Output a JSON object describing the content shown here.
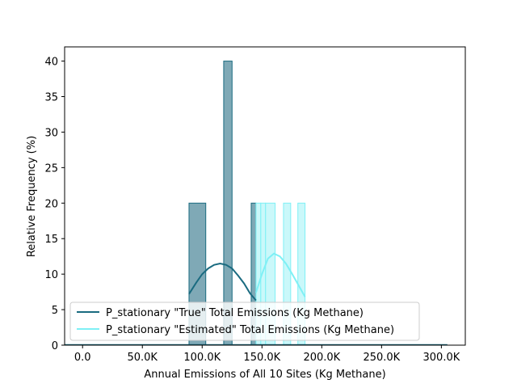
{
  "chart_data": {
    "type": "bar",
    "title": "",
    "xlabel": "Annual Emissions of All 10 Sites (Kg Methane)",
    "ylabel": "Relative Frequency (%)",
    "xlim": [
      -15000,
      320000
    ],
    "ylim": [
      0,
      42
    ],
    "xticks": [
      0,
      50000,
      100000,
      150000,
      200000,
      250000,
      300000
    ],
    "xtick_labels": [
      "0.0",
      "50.0K",
      "100.0K",
      "150.0K",
      "200.0K",
      "250.0K",
      "300.0K"
    ],
    "yticks": [
      0,
      5,
      10,
      15,
      20,
      25,
      30,
      35,
      40
    ],
    "ytick_labels": [
      "0",
      "5",
      "10",
      "15",
      "20",
      "25",
      "30",
      "35",
      "40"
    ],
    "grid": false,
    "legend_position": "lower-left",
    "series": [
      {
        "name": "P_stationary \"True\" Total Emissions (Kg Methane)",
        "color": "#1a6b80",
        "fill": "#7fa9b6",
        "bins": [
          {
            "x0": 89000,
            "x1": 103000,
            "value": 20
          },
          {
            "x0": 118000,
            "x1": 125000,
            "value": 40
          },
          {
            "x0": 141000,
            "x1": 145000,
            "value": 20
          }
        ],
        "kde": {
          "x": [
            89000,
            95000,
            100000,
            105000,
            110000,
            115000,
            120000,
            125000,
            130000,
            135000,
            140000,
            145000
          ],
          "y": [
            7.2,
            8.8,
            10.0,
            10.8,
            11.3,
            11.5,
            11.3,
            10.8,
            9.8,
            8.7,
            7.3,
            6.3
          ]
        }
      },
      {
        "name": "P_stationary \"Estimated\" Total Emissions (Kg Methane)",
        "color": "#7ff0f5",
        "fill": "#c4f7fa",
        "bins": [
          {
            "x0": 145000,
            "x1": 149000,
            "value": 20
          },
          {
            "x0": 149000,
            "x1": 153000,
            "value": 20
          },
          {
            "x0": 153000,
            "x1": 161000,
            "value": 20
          },
          {
            "x0": 168000,
            "x1": 174000,
            "value": 20
          },
          {
            "x0": 180000,
            "x1": 186000,
            "value": 20
          }
        ],
        "kde": {
          "x": [
            145000,
            150000,
            155000,
            160000,
            165000,
            170000,
            175000,
            180000,
            186000
          ],
          "y": [
            7.4,
            10.0,
            12.2,
            12.9,
            12.5,
            11.5,
            10.1,
            8.6,
            6.8
          ]
        }
      }
    ],
    "baseline_segments": [
      {
        "x0": -15000,
        "x1": 305000,
        "color": "#1a6b80"
      }
    ]
  }
}
